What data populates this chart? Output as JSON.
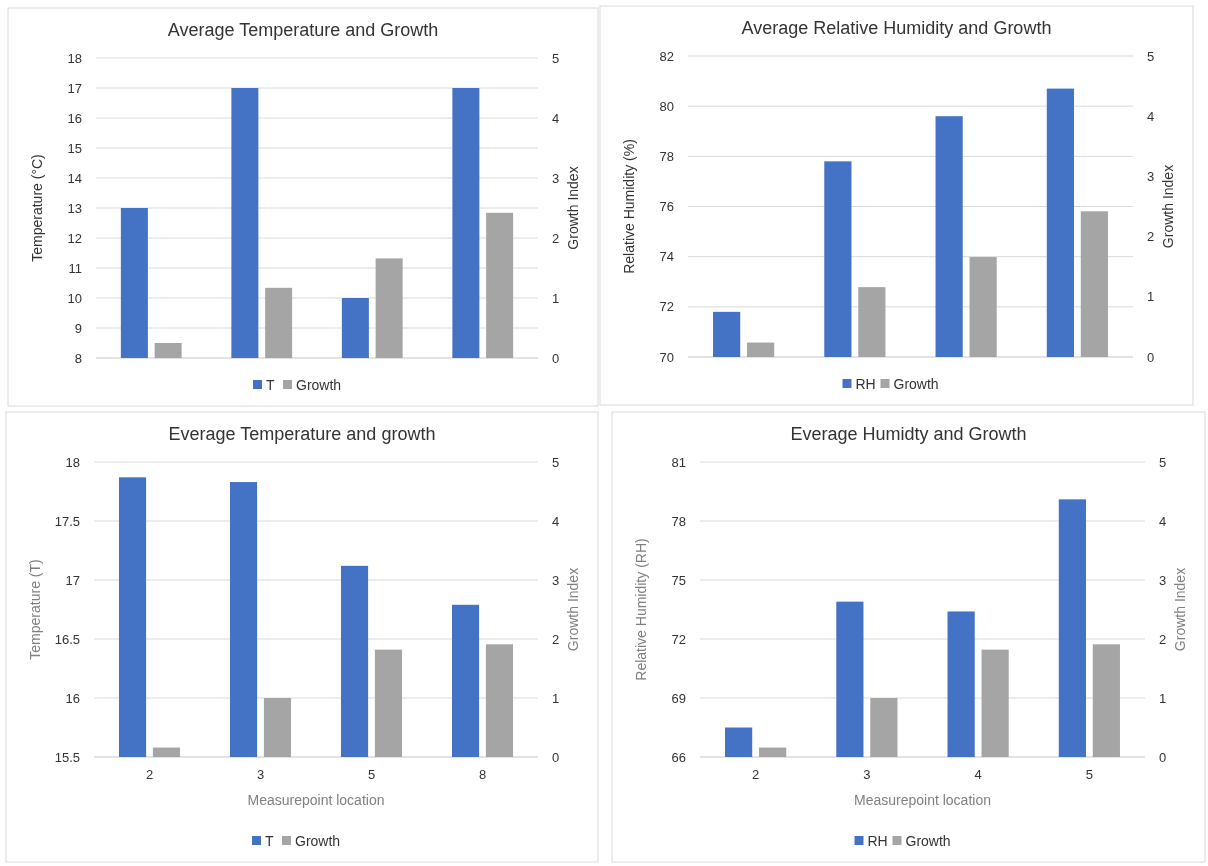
{
  "chart_data": [
    {
      "type": "bar",
      "title": "Average Temperature and Growth",
      "ylabel": "Temperature (°C)",
      "y2label": "Growth Index",
      "categories": [
        null,
        null,
        null,
        null
      ],
      "series": [
        {
          "name": "T",
          "color": "#4472c4",
          "values": [
            13,
            17,
            10,
            17
          ]
        },
        {
          "name": "Growth",
          "color": "#a5a5a5",
          "axis": "y2",
          "values": [
            0.25,
            1.17,
            1.66,
            2.42
          ]
        }
      ],
      "ylim": [
        8,
        18
      ],
      "yticks": [
        8,
        9,
        10,
        11,
        12,
        13,
        14,
        15,
        16,
        17,
        18
      ],
      "y2lim": [
        0,
        5
      ],
      "y2ticks": [
        0,
        1,
        2,
        3,
        4,
        5
      ],
      "grid": "y",
      "legend": "bottom"
    },
    {
      "type": "bar",
      "title": "Average Relative Humidity and Growth",
      "ylabel": "Relative Humidity (%)",
      "y2label": "Growth Index",
      "categories": [
        null,
        null,
        null,
        null
      ],
      "series": [
        {
          "name": "RH",
          "color": "#4472c4",
          "values": [
            71.8,
            77.8,
            79.6,
            80.7
          ]
        },
        {
          "name": "Growth",
          "color": "#a5a5a5",
          "axis": "y2",
          "values": [
            0.24,
            1.16,
            1.66,
            2.42
          ]
        }
      ],
      "ylim": [
        70,
        82
      ],
      "yticks": [
        70,
        72,
        74,
        76,
        78,
        80,
        82
      ],
      "y2lim": [
        0,
        5
      ],
      "y2ticks": [
        0,
        1,
        2,
        3,
        4,
        5
      ],
      "grid": "y",
      "legend": "bottom"
    },
    {
      "type": "bar",
      "title": "Everage Temperature and growth",
      "xlabel": "Measurepoint location",
      "ylabel": "Temperature (T)",
      "y2label": "Growth Index",
      "categories": [
        "2",
        "3",
        "5",
        "8"
      ],
      "series": [
        {
          "name": "T",
          "color": "#4472c4",
          "values": [
            17.87,
            17.83,
            17.12,
            16.79
          ]
        },
        {
          "name": "Growth",
          "color": "#a5a5a5",
          "axis": "y2",
          "values": [
            0.16,
            1.0,
            1.82,
            1.91
          ]
        }
      ],
      "ylim": [
        15.5,
        18
      ],
      "yticks": [
        15.5,
        16,
        16.5,
        17,
        17.5,
        18
      ],
      "y2lim": [
        0,
        5
      ],
      "y2ticks": [
        0,
        1,
        2,
        3,
        4,
        5
      ],
      "grid": "y",
      "legend": "bottom"
    },
    {
      "type": "bar",
      "title": "Everage Humidty and Growth",
      "xlabel": "Measurepoint location",
      "ylabel": "Relative Humidity (RH)",
      "y2label": "Growth Index",
      "categories": [
        "2",
        "3",
        "4",
        "5"
      ],
      "series": [
        {
          "name": "RH",
          "color": "#4472c4",
          "values": [
            67.5,
            73.9,
            73.4,
            79.1
          ]
        },
        {
          "name": "Growth",
          "color": "#a5a5a5",
          "axis": "y2",
          "values": [
            0.16,
            1.0,
            1.82,
            1.91
          ]
        }
      ],
      "ylim": [
        66,
        81
      ],
      "yticks": [
        66,
        69,
        72,
        75,
        78,
        81
      ],
      "y2lim": [
        0,
        5
      ],
      "y2ticks": [
        0,
        1,
        2,
        3,
        4,
        5
      ],
      "grid": "y",
      "legend": "bottom"
    }
  ]
}
